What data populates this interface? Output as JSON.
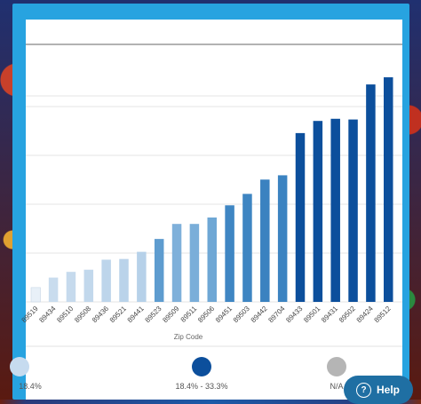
{
  "chart_data": {
    "type": "bar",
    "xlabel": "Zip Code",
    "ylabel": "",
    "categories": [
      "89519",
      "89434",
      "89510",
      "89508",
      "89436",
      "89521",
      "89441",
      "89523",
      "89509",
      "89511",
      "89506",
      "89451",
      "89503",
      "89442",
      "89704",
      "89433",
      "89501",
      "89431",
      "89502",
      "89424",
      "89512"
    ],
    "values": [
      2.0,
      3.4,
      4.2,
      4.5,
      5.9,
      6.0,
      7.0,
      8.8,
      10.9,
      10.9,
      11.8,
      13.5,
      15.1,
      17.1,
      17.7,
      23.6,
      25.3,
      25.6,
      25.5,
      30.4,
      31.4
    ],
    "ylim": [
      0,
      36
    ],
    "grid": true,
    "bins": [
      {
        "label": "18.4%",
        "color": "#c6dbef",
        "max": 9
      },
      {
        "label": "",
        "color": "#4a8fc7",
        "max": 18.4
      },
      {
        "label": "18.4% - 33.3%",
        "color": "#0c4f9c",
        "max": 33.3
      },
      {
        "label": "N/A",
        "color": "#b5b5b5",
        "max": null
      }
    ],
    "bar_colors": [
      "#e8f0f8",
      "#c9dcee",
      "#c6daed",
      "#c2d8ec",
      "#bdd5eb",
      "#bad3ea",
      "#b6d1e9",
      "#5e9ccf",
      "#7fb0da",
      "#7aaed9",
      "#6ea7d5",
      "#3f86c3",
      "#3e85c2",
      "#3a82c0",
      "#3b83c1",
      "#0c4f9c",
      "#0c4f9c",
      "#0c4f9c",
      "#0c4f9c",
      "#0c4f9c",
      "#0c4f9c"
    ]
  },
  "legend": {
    "left_label": "18.4%",
    "mid_label": "18.4% - 33.3%",
    "mid_color": "#0c4f9c",
    "right_label": "N/A",
    "right_color": "#b5b5b5"
  },
  "help": {
    "label": "Help",
    "icon": "question-circle-icon"
  }
}
